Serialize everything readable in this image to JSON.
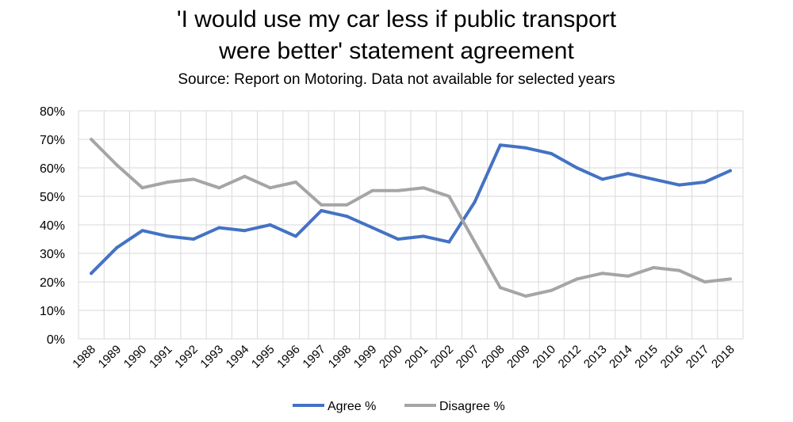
{
  "chart_data": {
    "type": "line",
    "title_line1": "'I would use my car less if public transport",
    "title_line2": "were better' statement agreement",
    "subtitle": "Source: Report on Motoring. Data not available for selected years",
    "categories": [
      "1988",
      "1989",
      "1990",
      "1991",
      "1992",
      "1993",
      "1994",
      "1995",
      "1996",
      "1997",
      "1998",
      "1999",
      "2000",
      "2001",
      "2002",
      "2007",
      "2008",
      "2009",
      "2010",
      "2012",
      "2013",
      "2014",
      "2015",
      "2016",
      "2017",
      "2018"
    ],
    "ylim": [
      0,
      80
    ],
    "yticks": [
      "0%",
      "10%",
      "20%",
      "30%",
      "40%",
      "50%",
      "60%",
      "70%",
      "80%"
    ],
    "grid": true,
    "legend_position": "bottom",
    "series": [
      {
        "name": "Agree %",
        "color": "#4472C4",
        "values": [
          23,
          32,
          38,
          36,
          35,
          39,
          38,
          40,
          36,
          45,
          43,
          39,
          35,
          36,
          34,
          48,
          68,
          67,
          65,
          60,
          56,
          58,
          56,
          54,
          55,
          59
        ]
      },
      {
        "name": "Disagree %",
        "color": "#A5A5A5",
        "values": [
          70,
          61,
          53,
          55,
          56,
          53,
          57,
          53,
          55,
          47,
          47,
          52,
          52,
          53,
          50,
          34,
          18,
          15,
          17,
          21,
          23,
          22,
          25,
          24,
          20,
          21
        ]
      }
    ]
  }
}
